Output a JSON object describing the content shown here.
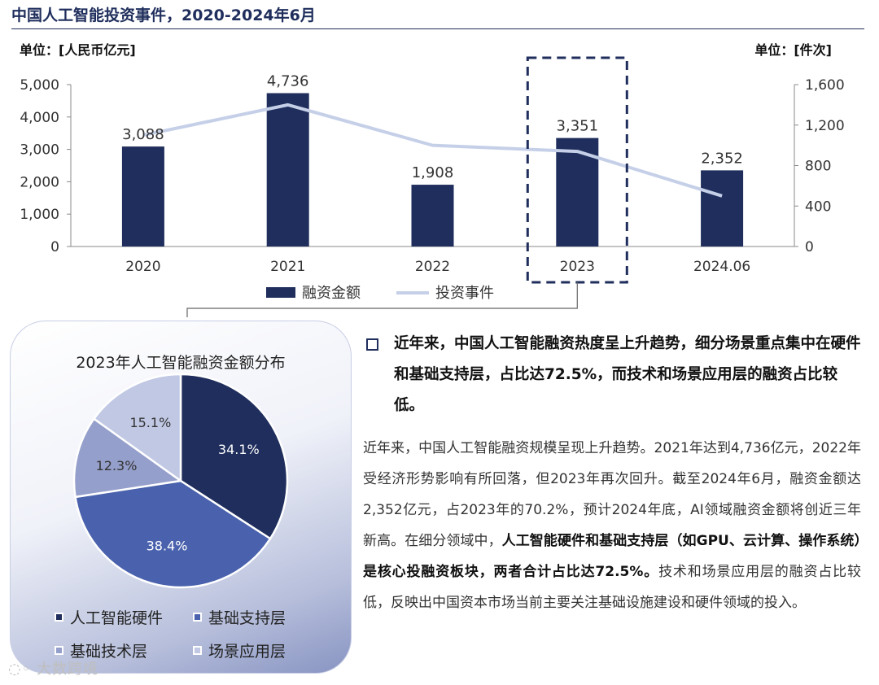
{
  "page": {
    "title": "中国人工智能投资事件，2020-2024年6月"
  },
  "chart_data": [
    {
      "type": "bar+line",
      "categories": [
        "2020",
        "2021",
        "2022",
        "2023",
        "2024.06"
      ],
      "series": [
        {
          "name": "融资金额",
          "type": "bar",
          "axis": "left",
          "color": "#1f2e5c",
          "values": [
            3088,
            4736,
            1908,
            3351,
            2352
          ],
          "labels": [
            "3,088",
            "4,736",
            "1,908",
            "3,351",
            "2,352"
          ]
        },
        {
          "name": "投资事件",
          "type": "line",
          "axis": "right",
          "color": "#c5d0e8",
          "values": [
            1100,
            1400,
            1000,
            940,
            500
          ]
        }
      ],
      "y_left": {
        "label": "单位：[人民币亿元]",
        "min": 0,
        "max": 5000,
        "ticks": [
          0,
          1000,
          2000,
          3000,
          4000,
          5000
        ],
        "tick_labels": [
          "0",
          "1,000",
          "2,000",
          "3,000",
          "4,000",
          "5,000"
        ]
      },
      "y_right": {
        "label": "单位：[件次]",
        "min": 0,
        "max": 1600,
        "ticks": [
          0,
          400,
          800,
          1200,
          1600
        ],
        "tick_labels": [
          "0",
          "400",
          "800",
          "1,200",
          "1,600"
        ]
      },
      "highlight_category": "2023",
      "legend_position": "bottom"
    },
    {
      "type": "pie",
      "title": "2023年人工智能融资金额分布",
      "slices": [
        {
          "name": "人工智能硬件",
          "value": 34.1,
          "label": "34.1%",
          "color": "#1f2e5c"
        },
        {
          "name": "基础支持层",
          "value": 38.4,
          "label": "38.4%",
          "color": "#4a62ad"
        },
        {
          "name": "基础技术层",
          "value": 12.3,
          "label": "12.3%",
          "color": "#959fcb"
        },
        {
          "name": "场景应用层",
          "value": 15.1,
          "label": "15.1%",
          "color": "#c0c8e4"
        }
      ],
      "legend_position": "bottom"
    }
  ],
  "text": {
    "headline": "近年来，中国人工智能融资热度呈上升趋势，细分场景重点集中在硬件和基础支持层，占比达72.5%，而技术和场景应用层的融资占比较低。",
    "body_1": "近年来，中国人工智能融资规模呈现上升趋势。2021年达到4,736亿元，2022年受经济形势影响有所回落，但2023年再次回升。截至2024年6月，融资金额达2,352亿元，占2023年的70.2%，预计2024年底，AI领域融资金额将创近三年新高。在细分领域中，",
    "body_bold": "人工智能硬件和基础支持层（如GPU、云计算、操作系统）是核心投融资板块，两者合计占比达72.5%。",
    "body_2": "技术和场景应用层的融资占比较低，反映出中国资本市场当前主要关注基础设施建设和硬件领域的投入。"
  },
  "watermark": "大数跨境"
}
